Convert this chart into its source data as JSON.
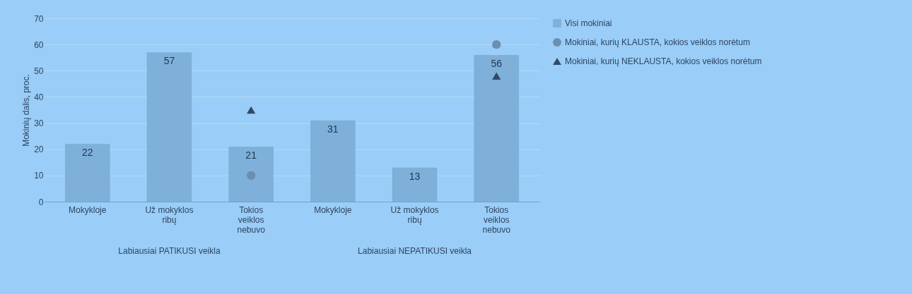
{
  "chart_data": {
    "type": "bar",
    "ylabel": "Mokinių dalis, proc.",
    "categories": [
      "Mokykloje",
      "Už mokyklos ribų",
      "Tokios veiklos nebuvo",
      "Mokykloje",
      "Už mokyklos ribų",
      "Tokios veiklos nebuvo"
    ],
    "series": [
      {
        "name": "Visi mokiniai",
        "color": "#7eb0d9",
        "values": [
          22,
          57,
          21,
          31,
          13,
          56
        ],
        "value_labels": [
          "22",
          "57",
          "21",
          "31",
          "13",
          "56"
        ]
      },
      {
        "name": "Mokiniai, kurių KLAUSTA, kokios veiklos norėtum",
        "type": "scatter",
        "marker": "circle",
        "color": "#6b8fb0",
        "values": [
          null,
          null,
          10,
          null,
          null,
          60
        ]
      },
      {
        "name": "Mokiniai, kurių NEKLAUSTA, kokios veiklos norėtum",
        "type": "scatter",
        "marker": "triangle",
        "color": "#2f4b68",
        "values": [
          null,
          null,
          35,
          null,
          null,
          48
        ]
      }
    ],
    "ylim": [
      0,
      70
    ],
    "yticks": [
      0,
      10,
      20,
      30,
      40,
      50,
      60,
      70
    ],
    "grid": "y",
    "legend": "right",
    "annotations": [
      "Labiausiai PATIKUSI veikla",
      "Labiausiai NEPATIKUSI veikla"
    ]
  }
}
